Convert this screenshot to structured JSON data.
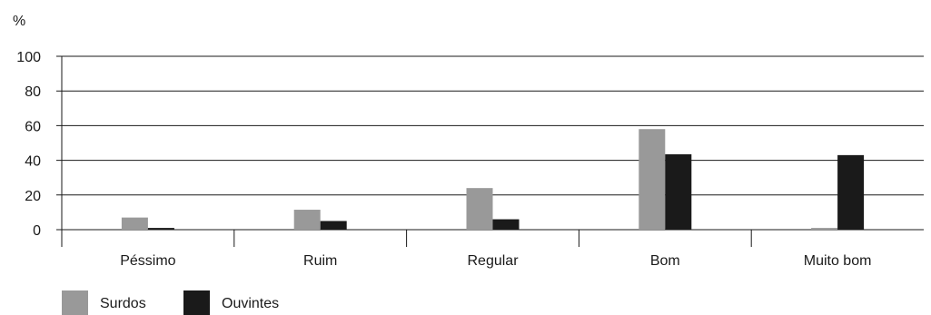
{
  "chart_data": {
    "type": "bar",
    "ylabel": "%",
    "ylim": [
      0,
      100
    ],
    "yticks": [
      0,
      20,
      40,
      60,
      80,
      100
    ],
    "grid": true,
    "legend_position": "bottom-left",
    "categories": [
      "Péssimo",
      "Ruim",
      "Regular",
      "Bom",
      "Muito bom"
    ],
    "series": [
      {
        "name": "Surdos",
        "color": "#999999",
        "values": [
          7,
          11.5,
          24,
          58,
          1
        ]
      },
      {
        "name": "Ouvintes",
        "color": "#1a1a1a",
        "values": [
          1,
          5,
          6,
          43.5,
          43
        ]
      }
    ]
  }
}
